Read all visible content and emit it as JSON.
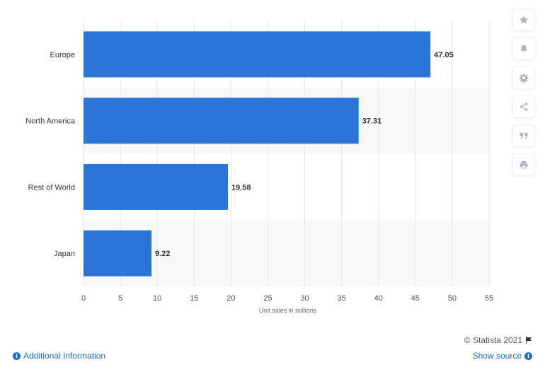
{
  "chart_data": {
    "type": "bar",
    "orientation": "horizontal",
    "categories": [
      "Europe",
      "North America",
      "Rest of World",
      "Japan"
    ],
    "values": [
      47.05,
      37.31,
      19.58,
      9.22
    ],
    "value_labels": [
      "47.05",
      "37.31",
      "19.58",
      "9.22"
    ],
    "xlabel": "Unit sales in millions",
    "xlim": [
      0,
      55
    ],
    "xticks": [
      0,
      5,
      10,
      15,
      20,
      25,
      30,
      35,
      40,
      45,
      50,
      55
    ],
    "xtick_labels": [
      "0",
      "5",
      "10",
      "15",
      "20",
      "25",
      "30",
      "35",
      "40",
      "45",
      "50",
      "55"
    ],
    "grid": "vertical",
    "bar_color": "#2b75d9",
    "alt_band_color": "#f8f8f8"
  },
  "toolbar": {
    "items": [
      "star-icon",
      "bell-icon",
      "gear-icon",
      "share-icon",
      "quote-icon",
      "print-icon"
    ]
  },
  "footer": {
    "additional_info": "Additional Information",
    "copyright": "© Statista 2021",
    "show_source": "Show source"
  }
}
